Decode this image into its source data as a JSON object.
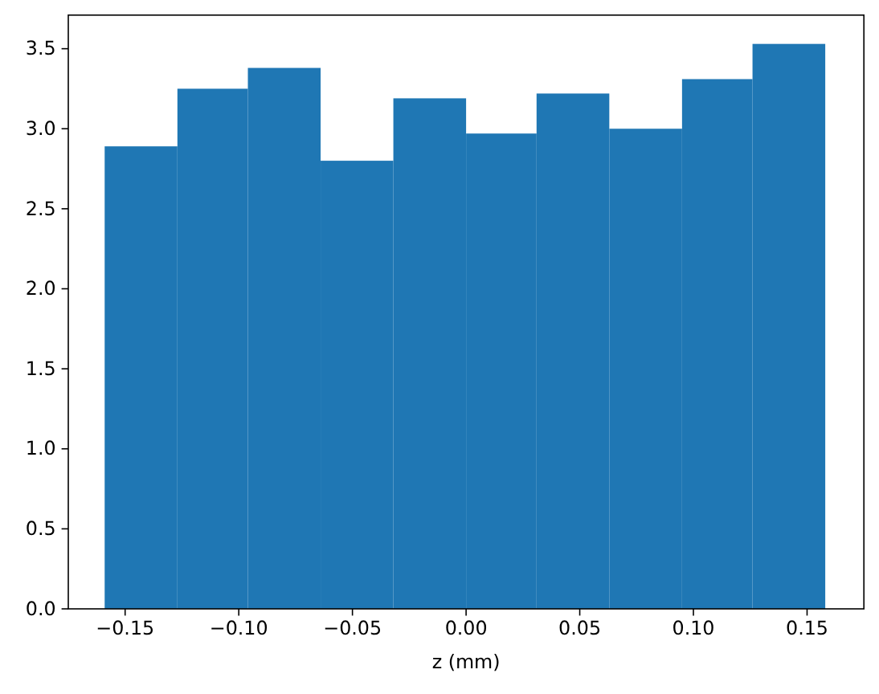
{
  "chart_data": {
    "type": "histogram",
    "xlabel": "z (mm)",
    "bins": [
      -0.159,
      -0.127,
      -0.096,
      -0.064,
      -0.032,
      0.0,
      0.031,
      0.063,
      0.095,
      0.126,
      0.158
    ],
    "values": [
      2.89,
      3.25,
      3.38,
      2.8,
      3.19,
      2.97,
      3.22,
      3.0,
      3.31,
      3.53
    ],
    "color": "#1f77b4",
    "xlim": [
      -0.175,
      0.175
    ],
    "xticks": [
      {
        "value": -0.15,
        "label": "−0.15"
      },
      {
        "value": -0.1,
        "label": "−0.10"
      },
      {
        "value": -0.05,
        "label": "−0.05"
      },
      {
        "value": 0,
        "label": "0.00"
      },
      {
        "value": 0.05,
        "label": "0.05"
      },
      {
        "value": 0.1,
        "label": "0.10"
      },
      {
        "value": 0.15,
        "label": "0.15"
      }
    ],
    "ylim": [
      0,
      3.71
    ],
    "yticks": [
      {
        "value": 0,
        "label": "0.0"
      },
      {
        "value": 0.5,
        "label": "0.5"
      },
      {
        "value": 1,
        "label": "1.0"
      },
      {
        "value": 1.5,
        "label": "1.5"
      },
      {
        "value": 2,
        "label": "2.0"
      },
      {
        "value": 2.5,
        "label": "2.5"
      },
      {
        "value": 3,
        "label": "3.0"
      },
      {
        "value": 3.5,
        "label": "3.5"
      }
    ]
  }
}
